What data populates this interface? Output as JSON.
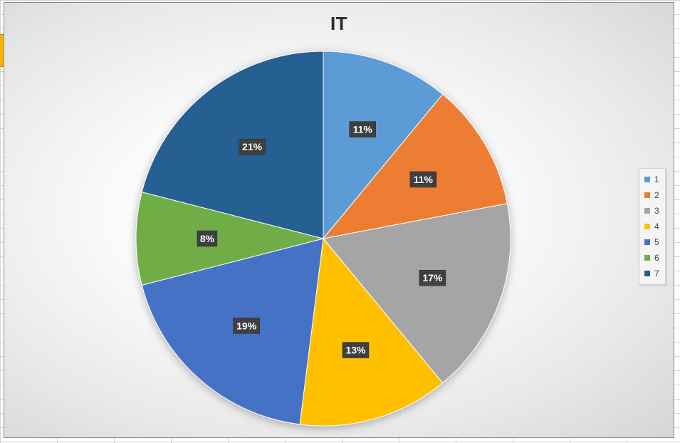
{
  "chart_data": {
    "type": "pie",
    "title": "IT",
    "categories": [
      "1",
      "2",
      "3",
      "4",
      "5",
      "6",
      "7"
    ],
    "values": [
      11,
      11,
      17,
      13,
      19,
      8,
      21
    ],
    "labels": [
      "11%",
      "11%",
      "17%",
      "13%",
      "19%",
      "8%",
      "21%"
    ],
    "colors": [
      "#5b9bd5",
      "#ed7d31",
      "#a5a5a5",
      "#ffc000",
      "#4472c4",
      "#70ad47",
      "#255e91"
    ],
    "legend_position": "right"
  }
}
